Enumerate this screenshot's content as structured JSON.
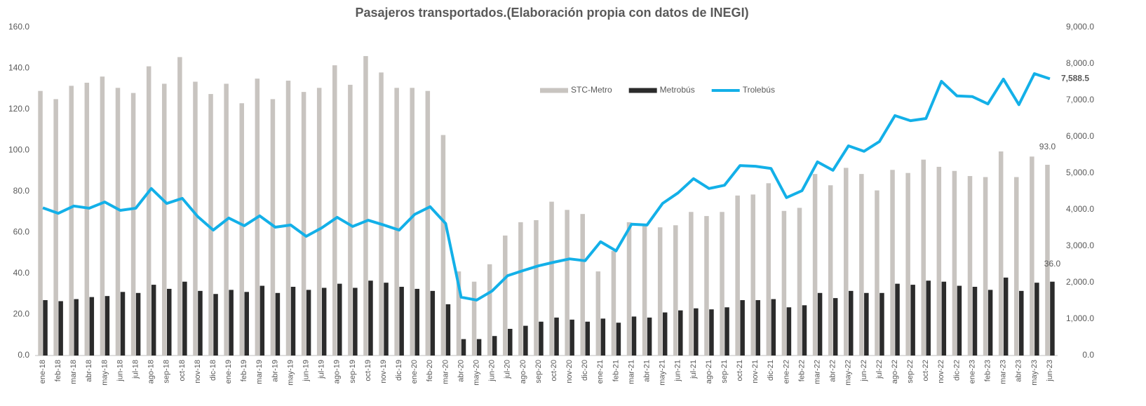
{
  "chart_data": {
    "type": "bar-line",
    "title": "Pasajeros transportados.(Elaboración propia con datos de INEGI)",
    "categories": [
      "ene-18",
      "feb-18",
      "mar-18",
      "abr-18",
      "may-18",
      "jun-18",
      "jul-18",
      "ago-18",
      "sep-18",
      "oct-18",
      "nov-18",
      "dic-18",
      "ene-19",
      "feb-19",
      "mar-19",
      "abr-19",
      "may-19",
      "jun-19",
      "jul-19",
      "ago-19",
      "sep-19",
      "oct-19",
      "nov-19",
      "dic-19",
      "ene-20",
      "feb-20",
      "mar-20",
      "abr-20",
      "may-20",
      "jun-20",
      "jul-20",
      "ago-20",
      "sep-20",
      "oct-20",
      "nov-20",
      "dic-20",
      "ene-21",
      "feb-21",
      "mar-21",
      "abr-21",
      "may-21",
      "jun-21",
      "jul-21",
      "ago-21",
      "sep-21",
      "oct-21",
      "nov-21",
      "dic-21",
      "ene-22",
      "feb-22",
      "mar-22",
      "abr-22",
      "may-22",
      "jun-22",
      "jul-22",
      "ago-22",
      "sep-22",
      "oct-22",
      "nov-22",
      "dic-22",
      "ene-23",
      "feb-23",
      "mar-23",
      "abr-23",
      "may-23",
      "jun-23"
    ],
    "series": [
      {
        "name": "STC-Metro",
        "type": "bar",
        "color": "#c8c4c0",
        "values": [
          129,
          125,
          131.5,
          133,
          136,
          130.5,
          128,
          141,
          132.5,
          145.5,
          133.5,
          127.5,
          132.5,
          123,
          135,
          125,
          134,
          128.5,
          130.5,
          141.5,
          132,
          146,
          138,
          130.5,
          130.5,
          129,
          107.5,
          41,
          36,
          44.5,
          58.5,
          65,
          66,
          75,
          71,
          69,
          41,
          51,
          65,
          64,
          62.5,
          63.5,
          70,
          68,
          70,
          78,
          78.5,
          84,
          70.5,
          72,
          88.5,
          83,
          91.5,
          88.5,
          80.5,
          90.5,
          89,
          95.5,
          92,
          90,
          87.5,
          87,
          99.5,
          87,
          97,
          93
        ],
        "value_labels": [
          null,
          null,
          null,
          null,
          null,
          null,
          null,
          null,
          null,
          null,
          null,
          null,
          null,
          null,
          null,
          null,
          null,
          null,
          null,
          null,
          null,
          null,
          null,
          null,
          null,
          null,
          null,
          null,
          null,
          null,
          null,
          null,
          null,
          null,
          null,
          null,
          null,
          null,
          null,
          null,
          null,
          null,
          null,
          null,
          null,
          null,
          null,
          null,
          null,
          null,
          null,
          null,
          null,
          null,
          null,
          null,
          null,
          null,
          null,
          null,
          null,
          null,
          null,
          null,
          null,
          "93.0"
        ]
      },
      {
        "name": "Metrobús",
        "type": "bar",
        "color": "#2b2b2b",
        "values": [
          27,
          26.5,
          27.5,
          28.5,
          29,
          31,
          30.5,
          34.5,
          32.5,
          36,
          31.5,
          30,
          32,
          31,
          34,
          30.5,
          33.5,
          32,
          33,
          35,
          33,
          36.5,
          35.5,
          33.5,
          32.5,
          31.5,
          25,
          8,
          8,
          9.5,
          13,
          14.5,
          16.5,
          18.5,
          17.5,
          16.5,
          18,
          16,
          19,
          18.5,
          21,
          22,
          23,
          22.5,
          23.5,
          27,
          27,
          27.5,
          23.5,
          24.5,
          30.5,
          28,
          31.5,
          30.5,
          30.5,
          35,
          34.5,
          36.5,
          36,
          34,
          33.5,
          32,
          38,
          31.5,
          35.5,
          36
        ],
        "value_labels": [
          null,
          null,
          null,
          null,
          null,
          null,
          null,
          null,
          null,
          null,
          null,
          null,
          null,
          null,
          null,
          null,
          null,
          null,
          null,
          null,
          null,
          null,
          null,
          null,
          null,
          null,
          null,
          null,
          null,
          null,
          null,
          null,
          null,
          null,
          null,
          null,
          null,
          null,
          null,
          null,
          null,
          null,
          null,
          null,
          null,
          null,
          null,
          null,
          null,
          null,
          null,
          null,
          null,
          null,
          null,
          null,
          null,
          null,
          null,
          null,
          null,
          null,
          null,
          null,
          null,
          "36.0"
        ]
      },
      {
        "name": "Trolebús",
        "type": "line",
        "axis": "y2",
        "color": "#13b0e8",
        "values": [
          4050,
          3900,
          4100,
          4040,
          4210,
          3980,
          4040,
          4580,
          4170,
          4310,
          3810,
          3440,
          3770,
          3560,
          3830,
          3520,
          3580,
          3270,
          3500,
          3790,
          3540,
          3710,
          3580,
          3440,
          3870,
          4080,
          3620,
          1600,
          1520,
          1770,
          2190,
          2330,
          2460,
          2560,
          2650,
          2600,
          3120,
          2870,
          3600,
          3580,
          4170,
          4460,
          4850,
          4580,
          4670,
          5210,
          5190,
          5130,
          4330,
          4520,
          5310,
          5080,
          5750,
          5600,
          5870,
          6580,
          6440,
          6500,
          7520,
          7120,
          7100,
          6900,
          7580,
          6880,
          7730,
          7588.5
        ],
        "value_labels": [
          null,
          null,
          null,
          null,
          null,
          null,
          null,
          null,
          null,
          null,
          null,
          null,
          null,
          null,
          null,
          null,
          null,
          null,
          null,
          null,
          null,
          null,
          null,
          null,
          null,
          null,
          null,
          null,
          null,
          null,
          null,
          null,
          null,
          null,
          null,
          null,
          null,
          null,
          null,
          null,
          null,
          null,
          null,
          null,
          null,
          null,
          null,
          null,
          null,
          null,
          null,
          null,
          null,
          null,
          null,
          null,
          null,
          null,
          null,
          null,
          null,
          null,
          null,
          null,
          null,
          "7,588.5"
        ]
      }
    ],
    "ylim": [
      0,
      160
    ],
    "yticks": [
      {
        "value": 0,
        "label": "0.0"
      },
      {
        "value": 20,
        "label": "20.0"
      },
      {
        "value": 40,
        "label": "40.0"
      },
      {
        "value": 60,
        "label": "60.0"
      },
      {
        "value": 80,
        "label": "80.0"
      },
      {
        "value": 100,
        "label": "100.0"
      },
      {
        "value": 120,
        "label": "120.0"
      },
      {
        "value": 140,
        "label": "140.0"
      },
      {
        "value": 160,
        "label": "160.0"
      }
    ],
    "y2lim": [
      0,
      9000
    ],
    "y2ticks": [
      {
        "value": 0,
        "label": "0.0"
      },
      {
        "value": 1000,
        "label": "1,000.0"
      },
      {
        "value": 2000,
        "label": "2,000.0"
      },
      {
        "value": 3000,
        "label": "3,000.0"
      },
      {
        "value": 4000,
        "label": "4,000.0"
      },
      {
        "value": 5000,
        "label": "5,000.0"
      },
      {
        "value": 6000,
        "label": "6,000.0"
      },
      {
        "value": 7000,
        "label": "7,000.0"
      },
      {
        "value": 8000,
        "label": "8,000.0"
      },
      {
        "value": 9000,
        "label": "9,000.0"
      }
    ],
    "grid": false,
    "legend": "top"
  }
}
